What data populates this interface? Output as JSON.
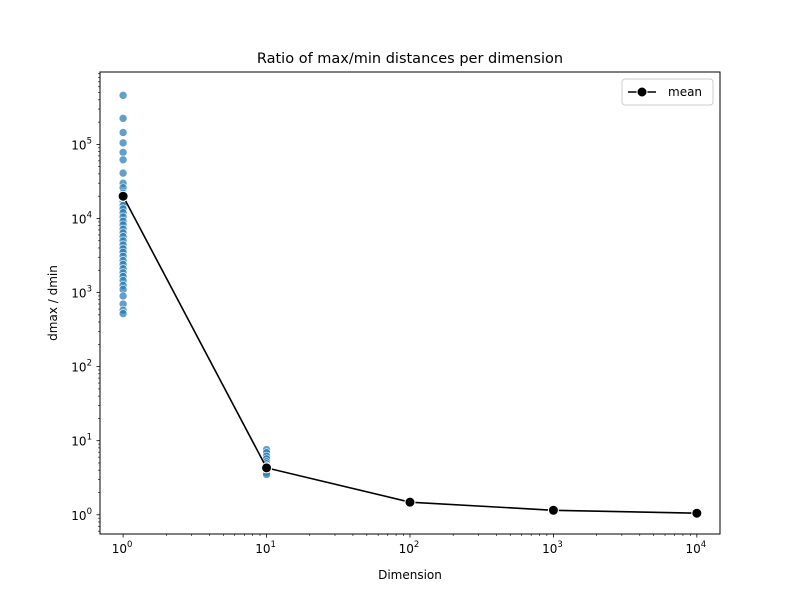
{
  "chart_data": {
    "type": "scatter",
    "title": "Ratio of max/min distances per dimension",
    "xlabel": "Dimension",
    "ylabel": "dmax / dmin",
    "xscale": "log",
    "yscale": "log",
    "xlim": [
      0.69,
      14500
    ],
    "ylim": [
      0.55,
      950000
    ],
    "grid": false,
    "legend": {
      "position": "top-right",
      "entries": [
        "mean"
      ]
    },
    "x_ticks": [
      {
        "value": 1,
        "base": "10",
        "exp": "0"
      },
      {
        "value": 10,
        "base": "10",
        "exp": "1"
      },
      {
        "value": 100,
        "base": "10",
        "exp": "2"
      },
      {
        "value": 1000,
        "base": "10",
        "exp": "3"
      },
      {
        "value": 10000,
        "base": "10",
        "exp": "4"
      }
    ],
    "y_ticks": [
      {
        "value": 1,
        "base": "10",
        "exp": "0"
      },
      {
        "value": 10,
        "base": "10",
        "exp": "1"
      },
      {
        "value": 100,
        "base": "10",
        "exp": "2"
      },
      {
        "value": 1000,
        "base": "10",
        "exp": "3"
      },
      {
        "value": 10000,
        "base": "10",
        "exp": "4"
      },
      {
        "value": 100000,
        "base": "10",
        "exp": "5"
      }
    ],
    "series": [
      {
        "kind": "scatter",
        "color": "#1f77b4",
        "points": [
          [
            1,
            460000
          ],
          [
            1,
            225000
          ],
          [
            1,
            145000
          ],
          [
            1,
            105000
          ],
          [
            1,
            78000
          ],
          [
            1,
            62000
          ],
          [
            1,
            41000
          ],
          [
            1,
            30000
          ],
          [
            1,
            26000
          ],
          [
            1,
            22000
          ],
          [
            1,
            19000
          ],
          [
            1,
            17000
          ],
          [
            1,
            15000
          ],
          [
            1,
            13500
          ],
          [
            1,
            12000
          ],
          [
            1,
            10500
          ],
          [
            1,
            9200
          ],
          [
            1,
            8200
          ],
          [
            1,
            7200
          ],
          [
            1,
            6400
          ],
          [
            1,
            5700
          ],
          [
            1,
            5000
          ],
          [
            1,
            4400
          ],
          [
            1,
            3900
          ],
          [
            1,
            3500
          ],
          [
            1,
            3100
          ],
          [
            1,
            2700
          ],
          [
            1,
            2400
          ],
          [
            1,
            2100
          ],
          [
            1,
            1850
          ],
          [
            1,
            1650
          ],
          [
            1,
            1450
          ],
          [
            1,
            1250
          ],
          [
            1,
            1100
          ],
          [
            1,
            900
          ],
          [
            1,
            700
          ],
          [
            1,
            580
          ],
          [
            1,
            520
          ],
          [
            10,
            7.6
          ],
          [
            10,
            6.9
          ],
          [
            10,
            6.2
          ],
          [
            10,
            5.7
          ],
          [
            10,
            5.2
          ],
          [
            10,
            4.9
          ],
          [
            10,
            4.6
          ],
          [
            10,
            4.3
          ],
          [
            10,
            4.1
          ],
          [
            10,
            3.9
          ],
          [
            10,
            3.7
          ],
          [
            10,
            3.5
          ],
          [
            100,
            1.52
          ],
          [
            100,
            1.49
          ],
          [
            100,
            1.47
          ],
          [
            100,
            1.45
          ],
          [
            100,
            1.43
          ],
          [
            1000,
            1.17
          ],
          [
            1000,
            1.16
          ],
          [
            1000,
            1.15
          ],
          [
            1000,
            1.14
          ],
          [
            10000,
            1.06
          ],
          [
            10000,
            1.055
          ],
          [
            10000,
            1.05
          ],
          [
            10000,
            1.045
          ]
        ]
      },
      {
        "name": "mean",
        "kind": "line",
        "color": "#000000",
        "x": [
          1,
          10,
          100,
          1000,
          10000
        ],
        "y": [
          20000,
          4.3,
          1.48,
          1.15,
          1.05
        ]
      }
    ]
  }
}
